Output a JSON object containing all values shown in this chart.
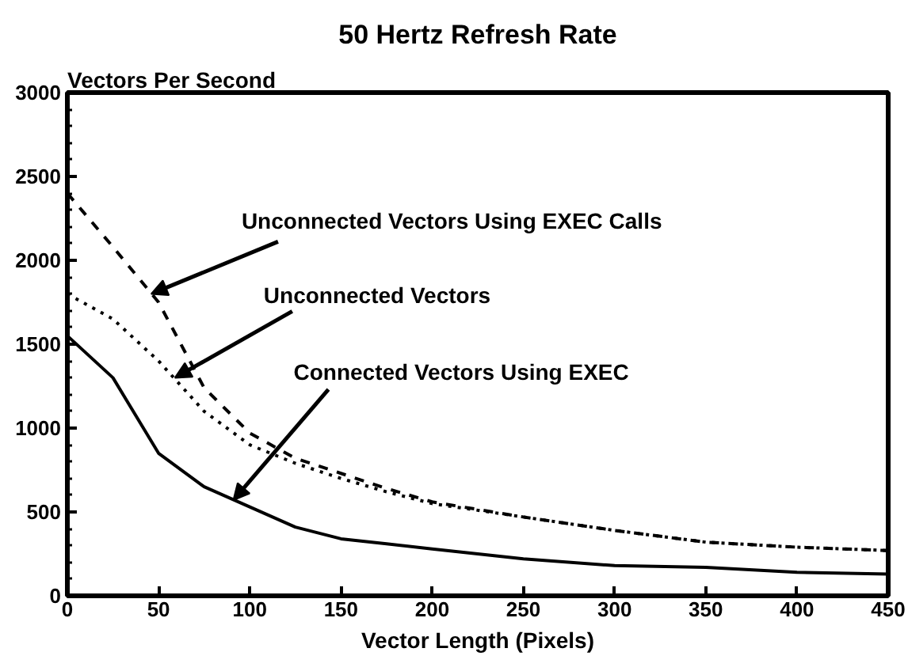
{
  "chart_data": {
    "type": "line",
    "title": "50 Hertz Refresh Rate",
    "xlabel": "Vector Length (Pixels)",
    "ylabel": "Vectors Per Second",
    "x": [
      0,
      25,
      50,
      75,
      100,
      125,
      150,
      175,
      200,
      250,
      300,
      350,
      400,
      450
    ],
    "series": [
      {
        "color": "#000000",
        "line_style": "solid",
        "values": [
          1550,
          1300,
          850,
          650,
          530,
          410,
          340,
          310,
          280,
          220,
          180,
          170,
          140,
          130
        ]
      },
      {
        "color": "#000000",
        "line_style": "dashed",
        "values": [
          2400,
          2080,
          1750,
          1240,
          970,
          820,
          730,
          640,
          560,
          470,
          390,
          320,
          290,
          270
        ]
      },
      {
        "color": "#000000",
        "line_style": "dotted",
        "values": [
          1800,
          1650,
          1400,
          1100,
          900,
          790,
          700,
          620,
          550,
          470,
          390,
          320,
          290,
          270
        ]
      }
    ],
    "xlim": [
      0,
      450
    ],
    "ylim": [
      0,
      3000
    ],
    "xticks": [
      0,
      50,
      100,
      150,
      200,
      250,
      300,
      350,
      400,
      450
    ],
    "yticks": [
      0,
      500,
      1000,
      1500,
      2000,
      2500,
      3000
    ],
    "grid": false,
    "marker": "none",
    "annotations": [
      {
        "text": "Unconnected Vectors Using EXEC Calls",
        "x": 46,
        "y": 1800
      },
      {
        "text": "Unconnected Vectors",
        "x": 59,
        "y": 1300
      },
      {
        "text": "Connected Vectors Using EXEC",
        "x": 91,
        "y": 570
      }
    ]
  }
}
